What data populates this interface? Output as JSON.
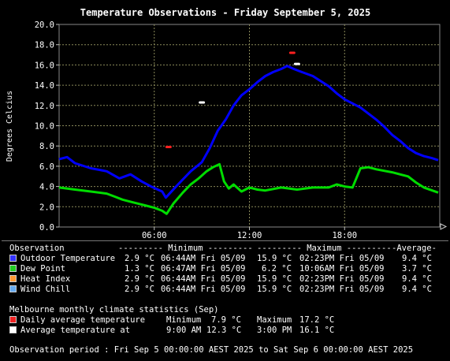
{
  "chart_data": {
    "type": "line",
    "title": "Temperature Observations - Friday September 5, 2025",
    "ylabel": "Degrees Celcius",
    "xlabel": "",
    "ylim": [
      0,
      20
    ],
    "y_ticks": [
      "0.0",
      "2.0",
      "4.0",
      "6.0",
      "8.0",
      "10.0",
      "12.0",
      "14.0",
      "16.0",
      "18.0",
      "20.0"
    ],
    "xlim_hours": [
      0,
      24
    ],
    "x_ticks": [
      {
        "hour": 6,
        "label": "06:00"
      },
      {
        "hour": 12,
        "label": "12:00"
      },
      {
        "hour": 18,
        "label": "18:00"
      }
    ],
    "grid": true,
    "series": [
      {
        "name": "Outdoor Temperature",
        "color": "#0000ff",
        "x": [
          0,
          0.5,
          1,
          2,
          3,
          3.8,
          4.5,
          5.2,
          5.8,
          6.5,
          6.73,
          7.5,
          8.3,
          9,
          9.5,
          10,
          10.5,
          11,
          11.5,
          12,
          12.5,
          13,
          13.5,
          14,
          14.38,
          14.8,
          15.3,
          16,
          16.5,
          17,
          17.5,
          18,
          18.5,
          19,
          19.5,
          20,
          20.5,
          21,
          21.5,
          22,
          22.5,
          23,
          23.5,
          23.9
        ],
        "y": [
          6.7,
          6.9,
          6.3,
          5.8,
          5.5,
          4.8,
          5.2,
          4.5,
          4.0,
          3.5,
          2.9,
          4.2,
          5.5,
          6.4,
          7.8,
          9.5,
          10.6,
          12.0,
          13.0,
          13.6,
          14.3,
          14.9,
          15.3,
          15.6,
          15.9,
          15.6,
          15.3,
          14.9,
          14.4,
          13.9,
          13.2,
          12.6,
          12.2,
          11.8,
          11.2,
          10.6,
          9.9,
          9.1,
          8.5,
          7.8,
          7.3,
          7.0,
          6.8,
          6.6
        ]
      },
      {
        "name": "Dew Point",
        "color": "#00dd00",
        "x": [
          0,
          1,
          2,
          3,
          3.5,
          4,
          4.5,
          5,
          5.5,
          6,
          6.5,
          6.78,
          7.2,
          7.8,
          8.3,
          8.8,
          9.3,
          9.7,
          10.11,
          10.4,
          10.7,
          11,
          11.5,
          12,
          12.5,
          13,
          14,
          15,
          16,
          17,
          17.5,
          18,
          18.5,
          19,
          19.5,
          20,
          21,
          22,
          22.5,
          23,
          23.9
        ],
        "y": [
          3.9,
          3.7,
          3.5,
          3.3,
          3.0,
          2.7,
          2.5,
          2.3,
          2.1,
          1.9,
          1.6,
          1.3,
          2.3,
          3.4,
          4.2,
          4.8,
          5.5,
          5.9,
          6.2,
          4.5,
          3.8,
          4.2,
          3.5,
          3.9,
          3.7,
          3.6,
          3.9,
          3.7,
          3.9,
          3.9,
          4.2,
          4.0,
          3.9,
          5.8,
          5.9,
          5.7,
          5.4,
          5.0,
          4.4,
          3.9,
          3.4
        ]
      },
      {
        "name": "Heat Index",
        "color": "#ff9933",
        "hidden_under": "Outdoor Temperature"
      },
      {
        "name": "Wind Chill",
        "color": "#66aaff",
        "hidden_under": "Outdoor Temperature"
      }
    ],
    "climate_markers": [
      {
        "name": "Daily average temperature",
        "kind": "min",
        "hour": 6.9,
        "value": 7.9,
        "color": "#ff2020"
      },
      {
        "name": "Daily average temperature",
        "kind": "max",
        "hour": 14.7,
        "value": 17.2,
        "color": "#ff2020"
      },
      {
        "name": "Average temperature at",
        "hour": 9.0,
        "value": 12.3,
        "color": "#ffffff"
      },
      {
        "name": "Average temperature at",
        "hour": 15.0,
        "value": 16.1,
        "color": "#ffffff"
      }
    ]
  },
  "legend": {
    "header": {
      "observation": "Observation",
      "minimum": "--------- Minimum ---------",
      "maximum": "--------- Maximum ---------",
      "average": "-Average-"
    },
    "rows": [
      {
        "name": "Outdoor Temperature",
        "color": "#3333ff",
        "min": "2.9 °C",
        "min_time": "06:44AM Fri 05/09",
        "max": "15.9 °C",
        "max_time": "02:23PM Fri 05/09",
        "avg": "9.4 °C"
      },
      {
        "name": "Dew Point",
        "color": "#22cc22",
        "min": "1.3 °C",
        "min_time": "06:47AM Fri 05/09",
        "max": "6.2 °C",
        "max_time": "10:06AM Fri 05/09",
        "avg": "3.7 °C"
      },
      {
        "name": "Heat Index",
        "color": "#ff9933",
        "min": "2.9 °C",
        "min_time": "06:44AM Fri 05/09",
        "max": "15.9 °C",
        "max_time": "02:23PM Fri 05/09",
        "avg": "9.4 °C"
      },
      {
        "name": "Wind Chill",
        "color": "#66aaee",
        "min": "2.9 °C",
        "min_time": "06:44AM Fri 05/09",
        "max": "15.9 °C",
        "max_time": "02:23PM Fri 05/09",
        "avg": "9.4 °C"
      }
    ]
  },
  "climate": {
    "heading": "Melbourne monthly climate statistics (Sep)",
    "rows": [
      {
        "label": "Daily average temperature",
        "color": "#ee2222",
        "a_label": "Minimum",
        "a_value": "7.9 °C",
        "b_label": "Maximum",
        "b_value": "17.2 °C"
      },
      {
        "label": "Average temperature at",
        "color": "#ffffff",
        "a_label": "9:00 AM",
        "a_value": "12.3 °C",
        "b_label": "3:00 PM",
        "b_value": "16.1 °C"
      }
    ]
  },
  "footer": "Observation period : Fri Sep 5 00:00:00 AEST 2025 to Sat Sep 6 00:00:00 AEST 2025"
}
